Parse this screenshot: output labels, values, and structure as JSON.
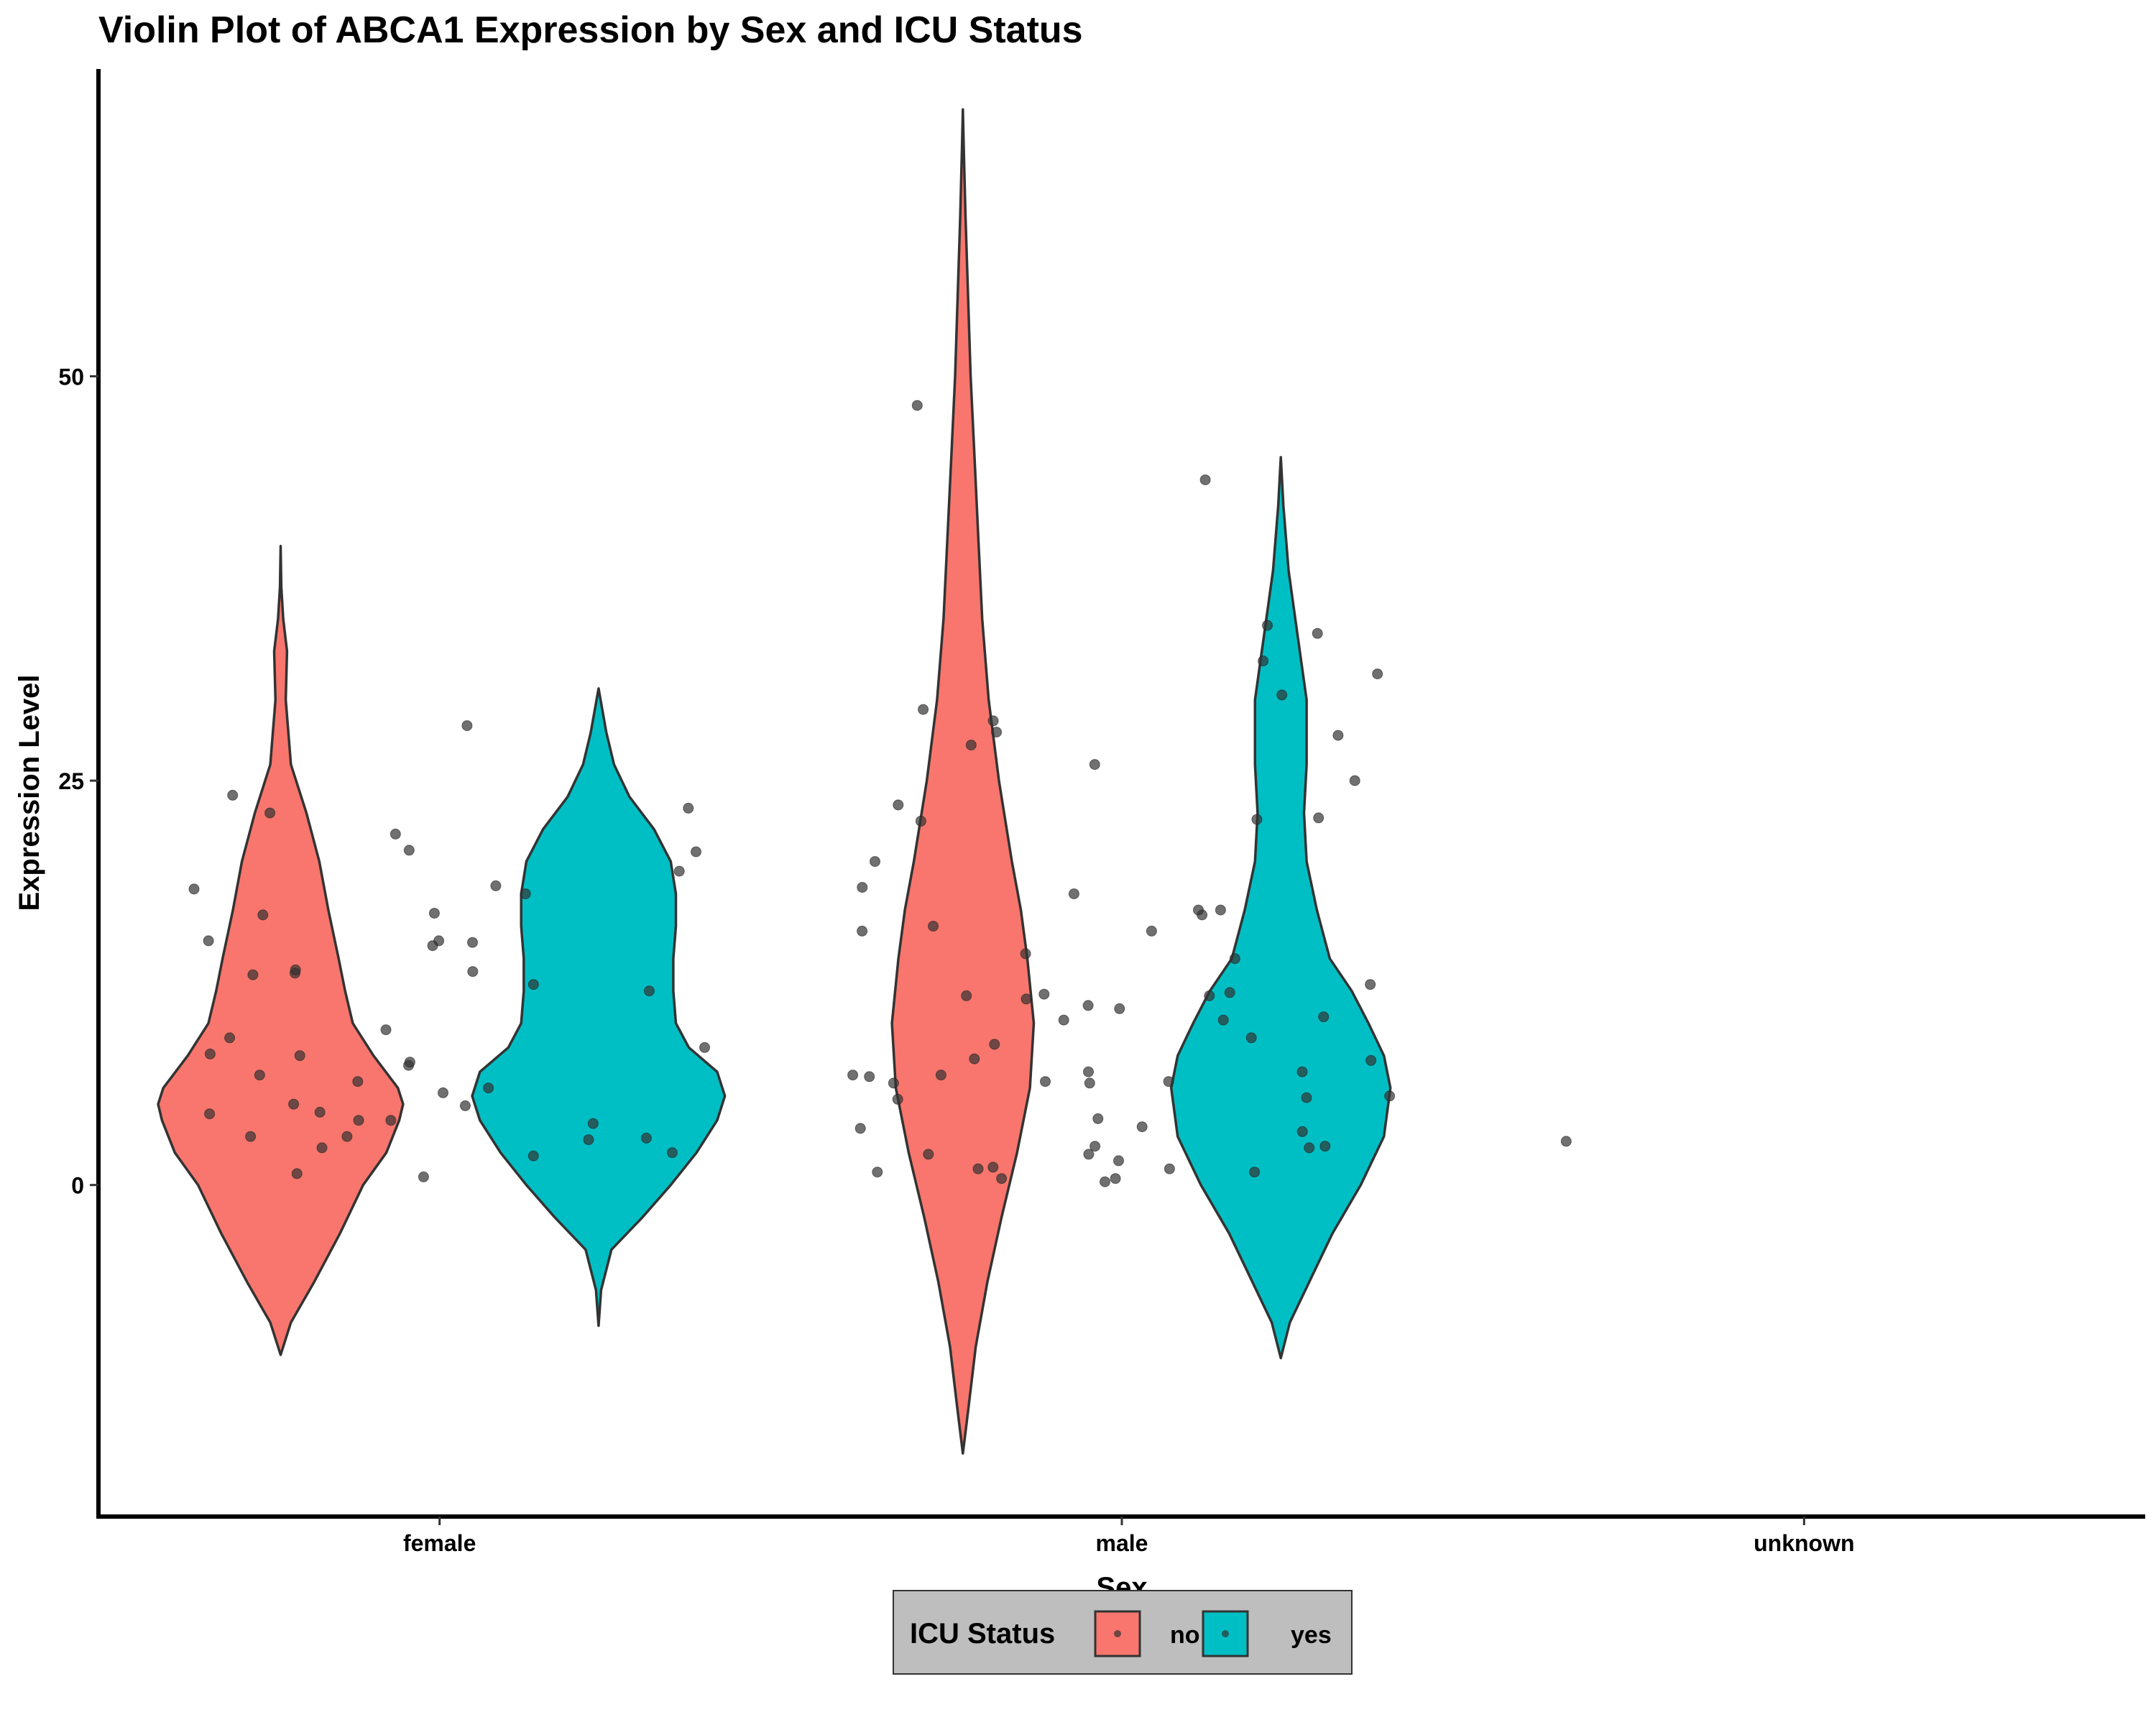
{
  "chart_data": {
    "type": "violin",
    "title": "Violin Plot of ABCA1 Expression by Sex and ICU Status",
    "xlabel": "Sex",
    "ylabel": "Expression Level",
    "categories": [
      "female",
      "male",
      "unknown"
    ],
    "y_ticks": [
      0,
      25,
      50
    ],
    "ylim": [
      -20.5,
      69
    ],
    "grid": false,
    "legend": {
      "title": "ICU Status",
      "position": "bottom",
      "entries": [
        "no",
        "yes"
      ]
    },
    "colors": {
      "no": "#F8766D",
      "yes": "#00BFC4",
      "outline": "#333333",
      "points": "#333333"
    },
    "violins": [
      {
        "category": "female",
        "group": "no",
        "profile": [
          [
            -10.5,
            0.0
          ],
          [
            -8.5,
            0.08
          ],
          [
            -6,
            0.26
          ],
          [
            -3,
            0.46
          ],
          [
            0,
            0.64
          ],
          [
            2,
            0.82
          ],
          [
            4,
            0.92
          ],
          [
            5,
            0.95
          ],
          [
            6,
            0.91
          ],
          [
            8,
            0.72
          ],
          [
            10,
            0.56
          ],
          [
            12,
            0.5
          ],
          [
            14,
            0.45
          ],
          [
            17,
            0.37
          ],
          [
            20,
            0.3
          ],
          [
            23,
            0.2
          ],
          [
            26,
            0.08
          ],
          [
            30,
            0.04
          ],
          [
            33,
            0.05
          ],
          [
            35,
            0.02
          ],
          [
            37,
            0.005
          ],
          [
            39.5,
            0.0
          ]
        ]
      },
      {
        "category": "female",
        "group": "yes",
        "profile": [
          [
            -8.7,
            0.0
          ],
          [
            -6.5,
            0.02
          ],
          [
            -4,
            0.1
          ],
          [
            -2,
            0.34
          ],
          [
            0,
            0.56
          ],
          [
            2,
            0.76
          ],
          [
            4,
            0.92
          ],
          [
            5.5,
            0.98
          ],
          [
            7,
            0.92
          ],
          [
            8.5,
            0.7
          ],
          [
            10,
            0.6
          ],
          [
            12,
            0.58
          ],
          [
            14,
            0.58
          ],
          [
            16,
            0.6
          ],
          [
            18,
            0.6
          ],
          [
            20,
            0.56
          ],
          [
            22,
            0.43
          ],
          [
            24,
            0.24
          ],
          [
            26,
            0.12
          ],
          [
            28,
            0.06
          ],
          [
            30.7,
            0.0
          ]
        ]
      },
      {
        "category": "male",
        "group": "no",
        "profile": [
          [
            -16.6,
            0.0
          ],
          [
            -14,
            0.04
          ],
          [
            -10,
            0.1
          ],
          [
            -6,
            0.19
          ],
          [
            -2,
            0.3
          ],
          [
            2,
            0.42
          ],
          [
            6,
            0.52
          ],
          [
            10,
            0.55
          ],
          [
            14,
            0.5
          ],
          [
            17,
            0.45
          ],
          [
            20,
            0.38
          ],
          [
            25,
            0.28
          ],
          [
            30,
            0.2
          ],
          [
            35,
            0.15
          ],
          [
            40,
            0.12
          ],
          [
            45,
            0.09
          ],
          [
            50,
            0.06
          ],
          [
            55,
            0.04
          ],
          [
            60,
            0.02
          ],
          [
            64,
            0.007
          ],
          [
            66.5,
            0.0
          ]
        ]
      },
      {
        "category": "male",
        "group": "yes",
        "profile": [
          [
            -10.7,
            0.0
          ],
          [
            -8.5,
            0.07
          ],
          [
            -6,
            0.22
          ],
          [
            -3,
            0.4
          ],
          [
            0,
            0.62
          ],
          [
            3,
            0.8
          ],
          [
            6,
            0.85
          ],
          [
            8,
            0.8
          ],
          [
            10,
            0.68
          ],
          [
            12,
            0.55
          ],
          [
            14,
            0.38
          ],
          [
            17,
            0.28
          ],
          [
            20,
            0.2
          ],
          [
            23,
            0.18
          ],
          [
            26,
            0.2
          ],
          [
            30,
            0.2
          ],
          [
            34,
            0.13
          ],
          [
            38,
            0.06
          ],
          [
            42,
            0.02
          ],
          [
            45,
            0.0
          ]
        ]
      }
    ],
    "points": [
      {
        "category": "female",
        "values": [
          16.8,
          13.2,
          9.1,
          8.0,
          7.4,
          5.7,
          4.4,
          2.9,
          6.0,
          4.0,
          2.3,
          3.8,
          18.0,
          15.1,
          15.1,
          13.1,
          12.4,
          13.0,
          15.0,
          14.8,
          16.7,
          18.3,
          19.4,
          20.6,
          24.1,
          20.7,
          23.3,
          23.0,
          21.7,
          28.4,
          1.8,
          4.5,
          6.8,
          8.5,
          7.6,
          5.0,
          4.9,
          3.0,
          3.0,
          2.8,
          4.0,
          6.4,
          8.1,
          2.0,
          0.7,
          12.0,
          0.5,
          13.3,
          18.5,
          9.6
        ]
      },
      {
        "category": "male",
        "values": [
          32.4,
          43.6,
          29.4,
          27.2,
          26.0,
          23.5,
          20.0,
          18.0,
          17.0,
          16.7,
          12.4,
          11.5,
          11.1,
          10.9,
          7.0,
          5.4,
          2.4,
          1.9,
          1.1,
          1.0,
          0.8,
          22.5,
          28.0,
          34.6,
          34.1,
          31.6,
          25.0,
          22.7,
          22.6,
          17.0,
          15.7,
          15.7,
          14.3,
          11.8,
          11.7,
          10.2,
          10.2,
          9.1,
          8.7,
          7.7,
          6.8,
          6.4,
          6.4,
          6.3,
          5.3,
          5.5,
          4.1,
          2.4,
          1.0,
          0.2,
          48.2,
          30.3,
          27.8,
          28.7,
          18.4,
          16.0,
          14.0,
          11.9,
          11.7,
          10.4,
          7.8,
          7.0,
          6.8,
          6.7,
          6.3,
          3.5,
          3.6,
          3.3,
          2.3,
          1.9,
          1.5,
          0.8,
          0.4,
          0.4
        ]
      },
      {
        "category": "unknown",
        "values": [
          2.7
        ]
      }
    ]
  }
}
